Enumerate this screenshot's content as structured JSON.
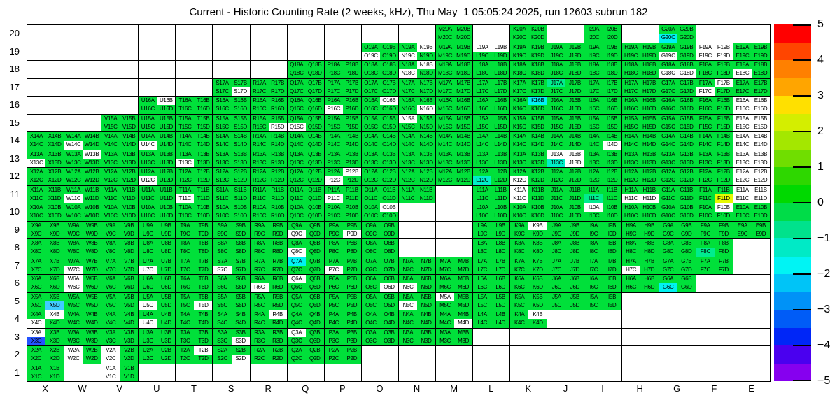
{
  "title": "Current - Historic Counting Rate (2 weeks, kHz), Thu May  1 05:05:24 2025, run 12603 subrun 182",
  "colors": {
    "green": "#00E03A",
    "white": "#FFFFFF",
    "mint": "#00EC8E",
    "turquoise": "#00EFC8",
    "cyan": "#00F2F2",
    "lightblue": "#3FCCFF",
    "blue": "#2353FF",
    "yellow": "#E6FA00"
  },
  "chart_data": {
    "type": "heatmap",
    "title": "Current - Historic Counting Rate (2 weeks, kHz), Thu May  1 05:05:24 2025, run 12603 subrun 182",
    "xlabel": "",
    "ylabel": "",
    "columns": [
      "X",
      "W",
      "V",
      "U",
      "T",
      "S",
      "R",
      "Q",
      "P",
      "O",
      "N",
      "M",
      "L",
      "K",
      "J",
      "I",
      "H",
      "G",
      "F",
      "E"
    ],
    "rows": [
      20,
      19,
      18,
      17,
      16,
      15,
      14,
      13,
      12,
      11,
      10,
      9,
      8,
      7,
      6,
      5,
      4,
      3,
      2,
      1
    ],
    "suffixes": [
      "A",
      "B",
      "C",
      "D"
    ],
    "value_by_color": {
      "green": 0,
      "mint": -0.75,
      "turquoise": -1.25,
      "cyan": -1.75,
      "lightblue": -2.25,
      "blue": -3.25,
      "yellow": 2.25,
      "white": null
    },
    "cells": {
      "20": [
        "M",
        "K",
        "I",
        "G"
      ],
      "19": [
        "O",
        "N",
        "M",
        "L",
        "K",
        "J",
        "I",
        "H",
        "G",
        "F",
        "E"
      ],
      "18": [
        "Q",
        "P",
        "O",
        "N",
        "M",
        "L",
        "K",
        "J",
        "I",
        "H",
        "G",
        "F",
        "E"
      ],
      "17": [
        "S",
        "R",
        "Q",
        "P",
        "O",
        "N",
        "M",
        "L",
        "K",
        "J",
        "I",
        "H",
        "G",
        "F",
        "E"
      ],
      "16": [
        "U",
        "T",
        "S",
        "R",
        "Q",
        "P",
        "O",
        "N",
        "M",
        "L",
        "K",
        "J",
        "I",
        "H",
        "G",
        "F",
        "E"
      ],
      "15": [
        "V",
        "U",
        "T",
        "S",
        "R",
        "Q",
        "P",
        "O",
        "N",
        "M",
        "L",
        "K",
        "J",
        "I",
        "H",
        "G",
        "F",
        "E"
      ],
      "14": [
        "X",
        "W",
        "V",
        "U",
        "T",
        "S",
        "R",
        "Q",
        "P",
        "O",
        "N",
        "M",
        "L",
        "K",
        "J",
        "I",
        "H",
        "G",
        "F",
        "E"
      ],
      "13": [
        "X",
        "W",
        "V",
        "U",
        "T",
        "S",
        "R",
        "Q",
        "P",
        "O",
        "N",
        "M",
        "L",
        "K",
        "J",
        "I",
        "H",
        "G",
        "F",
        "E"
      ],
      "12": [
        "X",
        "W",
        "V",
        "U",
        "T",
        "S",
        "R",
        "Q",
        "P",
        "O",
        "N",
        "M",
        "L",
        "K",
        "J",
        "I",
        "H",
        "G",
        "F",
        "E"
      ],
      "11": [
        "X",
        "W",
        "V",
        "U",
        "T",
        "S",
        "R",
        "Q",
        "P",
        "O",
        "N",
        "L",
        "K",
        "J",
        "I",
        "H",
        "G",
        "F",
        "E"
      ],
      "10": [
        "X",
        "W",
        "V",
        "U",
        "T",
        "S",
        "R",
        "Q",
        "P",
        "O",
        "L",
        "K",
        "J",
        "I",
        "H",
        "G",
        "F",
        "E"
      ],
      "9": [
        "X",
        "W",
        "V",
        "U",
        "T",
        "S",
        "R",
        "Q",
        "P",
        "O",
        "L",
        "K",
        "J",
        "I",
        "H",
        "G",
        "F",
        "E"
      ],
      "8": [
        "X",
        "W",
        "V",
        "U",
        "T",
        "S",
        "R",
        "Q",
        "P",
        "O",
        "L",
        "K",
        "J",
        "I",
        "H",
        "G",
        "F"
      ],
      "7": [
        "X",
        "W",
        "V",
        "U",
        "T",
        "S",
        "R",
        "Q",
        "P",
        "O",
        "N",
        "M",
        "L",
        "K",
        "J",
        "I",
        "H",
        "G",
        "F"
      ],
      "6": [
        "X",
        "W",
        "V",
        "U",
        "T",
        "S",
        "R",
        "Q",
        "P",
        "O",
        "N",
        "M",
        "L",
        "K",
        "J",
        "I",
        "H",
        "G"
      ],
      "5": [
        "X",
        "W",
        "V",
        "U",
        "T",
        "S",
        "R",
        "Q",
        "P",
        "O",
        "N",
        "M",
        "L",
        "K",
        "J",
        "I"
      ],
      "4": [
        "X",
        "W",
        "V",
        "U",
        "T",
        "S",
        "R",
        "Q",
        "P",
        "O",
        "N",
        "M",
        "L",
        "K"
      ],
      "3": [
        "X",
        "W",
        "V",
        "U",
        "T",
        "S",
        "R",
        "Q",
        "P",
        "O",
        "N",
        "M"
      ],
      "2": [
        "X",
        "W",
        "V",
        "U",
        "T",
        "S",
        "R",
        "Q",
        "P"
      ],
      "1": [
        "X",
        "V"
      ]
    },
    "overrides": {
      "G20C": "cyan",
      "O19C": "white",
      "N19B": "white",
      "N19C": "white",
      "L19A": "white",
      "L19B": "white",
      "G19C": "white",
      "F19A": "white",
      "F19B": "white",
      "F19C": "white",
      "F19D": "white",
      "N18B": "white",
      "N18C": "white",
      "G18C": "white",
      "G18D": "white",
      "E18C": "white",
      "S17D": "white",
      "J17A": "mint",
      "F17B": "white",
      "F17C": "white",
      "U16B": "white",
      "P16C": "white",
      "O16B": "white",
      "N16D": "white",
      "K16B": "cyan",
      "E16A": "white",
      "E16B": "white",
      "E16C": "white",
      "E16D": "white",
      "R15D": "white",
      "Q15C": "white",
      "N15A": "white",
      "E15A": "white",
      "E15B": "white",
      "E15C": "white",
      "E15D": "white",
      "W14C": "white",
      "U14C": "white",
      "I14D": "white",
      "E14A": "white",
      "E14B": "white",
      "E14C": "white",
      "E14D": "white",
      "X13C": "white",
      "W13B": "white",
      "T13C": "white",
      "J13A": "white",
      "J13B": "white",
      "J13C": "turquoise",
      "J13D": "white",
      "E13A": "white",
      "E13B": "white",
      "E13C": "white",
      "E13D": "white",
      "U12C": "white",
      "P12B": "white",
      "P12C": "white",
      "L12C": "turquoise",
      "K12C": "white",
      "E12A": "white",
      "E12B": "white",
      "E12C": "white",
      "E12D": "white",
      "W11C": "white",
      "T11C": "white",
      "P11C": "white",
      "K11A": "white",
      "K11C": "white",
      "I11C": "mint",
      "H11C": "white",
      "H11D": "white",
      "F11D": "yellow",
      "E11A": "white",
      "E11B": "white",
      "E11C": "white",
      "E11D": "white",
      "O10B": "white",
      "I10A": "white",
      "F10B": "white",
      "Q9C": "white",
      "P9D": "white",
      "K9B": "white",
      "Q8C": "white",
      "F8C": "mint",
      "W7C": "white",
      "U7C": "white",
      "S7C": "white",
      "Q7A": "cyan",
      "P7C": "white",
      "H7C": "white",
      "W6A": "white",
      "W6C": "white",
      "R6C": "white",
      "Q6A": "white",
      "O6D": "white",
      "N6C": "white",
      "G6C": "cyan",
      "X5D": "lightblue",
      "U5C": "white",
      "T5D": "white",
      "N5C": "white",
      "M5A": "white",
      "X4B": "white",
      "X4C": "white",
      "U4C": "white",
      "R4B": "white",
      "M4D": "white",
      "K4B": "white",
      "X3A": "white",
      "X3C": "blue",
      "S3D": "white",
      "Q3A": "white",
      "W2A": "white",
      "W2C": "white",
      "V2A": "white",
      "V2C": "white",
      "T2B": "white",
      "S2D": "white",
      "V1A": "white",
      "V1C": "white"
    },
    "colorbar": {
      "position": "right",
      "range": [
        -5,
        5
      ],
      "tick_labels": [
        "5",
        "4",
        "3",
        "2",
        "1",
        "0",
        "−1",
        "−2",
        "−3",
        "−4",
        "−5"
      ],
      "segments_top_to_bottom": [
        "#FF0000",
        "#FF4500",
        "#FF8000",
        "#FFA500",
        "#FFE000",
        "#D4EE00",
        "#A4E700",
        "#70DE00",
        "#2ED700",
        "#00D900",
        "#00DC48",
        "#00E28C",
        "#00EAC6",
        "#00F4F4",
        "#00C4F7",
        "#0092F7",
        "#005CF7",
        "#0026F7",
        "#4A00EF",
        "#8600EF"
      ]
    }
  }
}
